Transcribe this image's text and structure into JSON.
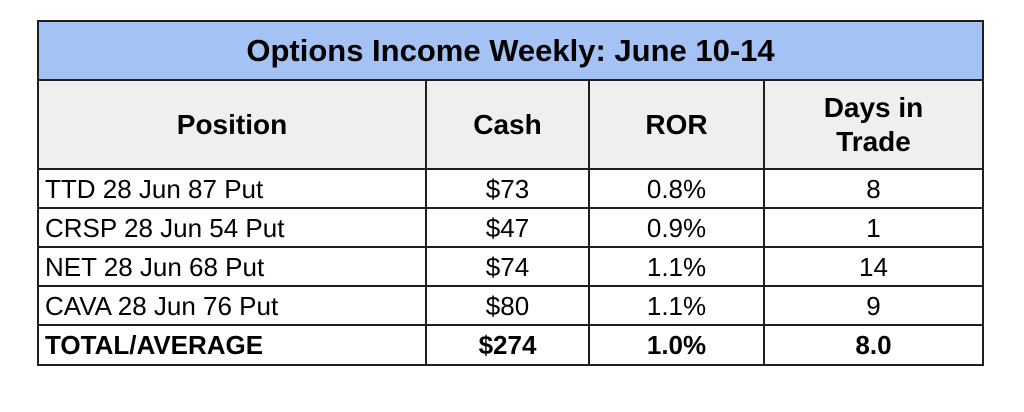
{
  "table": {
    "title": "Options Income Weekly: June 10-14",
    "headers": [
      "Position",
      "Cash",
      "ROR",
      "Days in Trade"
    ],
    "rows": [
      [
        "TTD 28 Jun 87 Put",
        "$73",
        "0.8%",
        "8"
      ],
      [
        "CRSP 28 Jun 54 Put",
        "$47",
        "0.9%",
        "1"
      ],
      [
        "NET 28 Jun 68 Put",
        "$74",
        "1.1%",
        "14"
      ],
      [
        "CAVA 28 Jun 76 Put",
        "$80",
        "1.1%",
        "9"
      ]
    ],
    "total": [
      "TOTAL/AVERAGE",
      "$274",
      "1.0%",
      "8.0"
    ]
  },
  "colors": {
    "title_background": "#a4c2f4",
    "header_background": "#efefef",
    "border": "#1f1f1f"
  }
}
